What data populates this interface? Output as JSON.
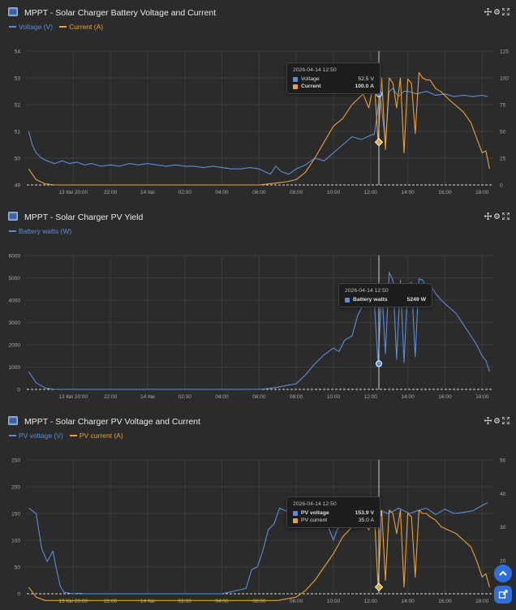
{
  "colors": {
    "blue": "#5b8dd9",
    "orange": "#e8a23a",
    "grid": "#3c3c3c",
    "axis_text": "#a8a8a8"
  },
  "icons": [
    "chart-panel-icon",
    "move-icon",
    "settings-icon",
    "expand-icon",
    "scroll-up-icon",
    "export-icon"
  ],
  "tooltip_time": "2026-04-14 12:50",
  "chart_data": [
    {
      "type": "line",
      "title": "MPPT - Solar Charger Battery Voltage and Current",
      "x_tick_labels": [
        "13 Кві 20:00",
        "22:00",
        "14 Кві",
        "02:00",
        "04:00",
        "06:00",
        "08:00",
        "10:00",
        "12:00",
        "14:00",
        "16:00",
        "18:00"
      ],
      "x_tick_hours": [
        20,
        22,
        24,
        26,
        28,
        30,
        32,
        34,
        36,
        38,
        40,
        42
      ],
      "xlim_hours": [
        17.5,
        42.6
      ],
      "y_left": {
        "ticks": [
          "49",
          "50",
          "51",
          "52",
          "53",
          "54"
        ],
        "lim": [
          49,
          54
        ]
      },
      "y_right": {
        "ticks": [
          "0",
          "25",
          "50",
          "75",
          "100",
          "125"
        ],
        "lim": [
          0,
          125
        ]
      },
      "series": [
        {
          "name": "Voltage (V)",
          "axis": "left",
          "color": "#5b8dd9",
          "x": [
            17.6,
            17.8,
            18,
            18.3,
            18.6,
            19,
            19.4,
            19.8,
            20.2,
            20.6,
            21,
            21.5,
            22,
            22.5,
            23,
            23.5,
            24,
            24.5,
            25,
            25.5,
            26,
            26.5,
            27,
            27.5,
            28,
            28.5,
            29,
            29.5,
            30,
            30.3,
            30.6,
            30.9,
            31.2,
            31.6,
            32,
            32.5,
            33,
            33.5,
            34,
            34.5,
            35,
            35.5,
            36,
            36.2,
            36.5,
            36.8,
            37,
            37.2,
            37.5,
            37.8,
            38,
            38.5,
            39,
            39.5,
            40,
            40.5,
            41,
            41.5,
            42,
            42.3
          ],
          "y": [
            51.0,
            50.5,
            50.2,
            50.0,
            49.9,
            49.8,
            49.9,
            49.8,
            49.85,
            49.75,
            49.8,
            49.7,
            49.75,
            49.7,
            49.8,
            49.75,
            49.8,
            49.75,
            49.7,
            49.75,
            49.7,
            49.7,
            49.65,
            49.7,
            49.65,
            49.6,
            49.6,
            49.65,
            49.6,
            49.5,
            49.4,
            49.7,
            49.5,
            49.4,
            49.6,
            49.75,
            50.0,
            49.9,
            50.2,
            50.5,
            50.8,
            50.7,
            50.85,
            50.9,
            52.4,
            50.6,
            52.5,
            52.6,
            52.3,
            52.5,
            52.5,
            52.4,
            52.5,
            52.35,
            52.4,
            52.3,
            52.35,
            52.3,
            52.35,
            52.3
          ]
        },
        {
          "name": "Current (A)",
          "axis": "right",
          "color": "#e8a23a",
          "x": [
            17.6,
            18,
            18.5,
            19,
            20,
            22,
            24,
            26,
            28,
            30,
            30.5,
            31,
            31.5,
            32,
            32.5,
            33,
            33.5,
            34,
            34.5,
            35,
            35.3,
            35.6,
            35.9,
            36.2,
            36.4,
            36.6,
            36.8,
            37,
            37.2,
            37.4,
            37.6,
            37.8,
            38,
            38.2,
            38.4,
            38.6,
            38.8,
            39,
            39.2,
            39.5,
            39.8,
            40.2,
            40.6,
            41,
            41.4,
            41.7,
            42,
            42.2,
            42.4
          ],
          "y": [
            15,
            5,
            1,
            0,
            0,
            0,
            0,
            0,
            0,
            0,
            1,
            2,
            3,
            5,
            12,
            25,
            40,
            55,
            62,
            75,
            80,
            85,
            72,
            97,
            40,
            100,
            33,
            100,
            95,
            72,
            100,
            30,
            99,
            95,
            48,
            105,
            100,
            98,
            98,
            90,
            87,
            80,
            74,
            68,
            58,
            44,
            30,
            32,
            15
          ]
        }
      ]
    },
    {
      "type": "line",
      "title": "MPPT - Solar Charger PV Yield",
      "x_tick_labels": [
        "13 Кві 20:00",
        "22:00",
        "14 Кві",
        "02:00",
        "04:00",
        "06:00",
        "08:00",
        "10:00",
        "12:00",
        "14:00",
        "16:00",
        "18:00"
      ],
      "x_tick_hours": [
        20,
        22,
        24,
        26,
        28,
        30,
        32,
        34,
        36,
        38,
        40,
        42
      ],
      "xlim_hours": [
        17.5,
        42.6
      ],
      "y_left": {
        "ticks": [
          "0",
          "1000",
          "2000",
          "3000",
          "4000",
          "5000",
          "6000"
        ],
        "lim": [
          0,
          6000
        ]
      },
      "series": [
        {
          "name": "Battery watts (W)",
          "axis": "left",
          "color": "#5b8dd9",
          "x": [
            17.6,
            18,
            18.5,
            19,
            20,
            22,
            24,
            26,
            28,
            30,
            30.5,
            31,
            31.5,
            32,
            32.5,
            33,
            33.5,
            34,
            34.3,
            34.6,
            35,
            35.3,
            35.6,
            35.9,
            36.2,
            36.4,
            36.6,
            36.8,
            37,
            37.2,
            37.4,
            37.6,
            37.8,
            38,
            38.2,
            38.4,
            38.6,
            38.8,
            39,
            39.2,
            39.5,
            39.8,
            40.2,
            40.6,
            41,
            41.4,
            41.7,
            42,
            42.2,
            42.4
          ],
          "y": [
            800,
            300,
            60,
            0,
            0,
            0,
            0,
            0,
            0,
            0,
            40,
            100,
            180,
            250,
            650,
            1150,
            1550,
            1850,
            1700,
            2200,
            2400,
            3300,
            3800,
            4200,
            3900,
            1150,
            4500,
            1600,
            5249,
            4900,
            1350,
            4900,
            1200,
            4700,
            4800,
            1450,
            4950,
            4900,
            4600,
            4700,
            4300,
            4000,
            3700,
            3400,
            2900,
            2400,
            2000,
            1500,
            1300,
            800
          ]
        }
      ]
    },
    {
      "type": "line",
      "title": "MPPT - Solar Charger PV Voltage and Current",
      "x_tick_labels": [
        "13 Кві 20:00",
        "22:00",
        "14 Кві",
        "02:00",
        "04:00",
        "06:00",
        "08:00",
        "10:00",
        "12:00",
        "14:00",
        "16:00",
        "18:00"
      ],
      "x_tick_hours": [
        20,
        22,
        24,
        26,
        28,
        30,
        32,
        34,
        36,
        38,
        40,
        42
      ],
      "xlim_hours": [
        17.5,
        42.6
      ],
      "y_left": {
        "ticks": [
          "0",
          "50",
          "100",
          "150",
          "200",
          "250"
        ],
        "lim": [
          0,
          250
        ]
      },
      "y_right": {
        "ticks": [
          "10",
          "20",
          "30",
          "40",
          "50"
        ],
        "lim": [
          10,
          50
        ]
      },
      "series": [
        {
          "name": "PV voltage (V)",
          "axis": "left",
          "color": "#5b8dd9",
          "x": [
            17.6,
            18,
            18.3,
            18.6,
            18.9,
            19.1,
            19.3,
            19.5,
            19.8,
            20,
            20.3,
            20.6,
            21,
            22,
            24,
            26,
            28,
            29.3,
            29.6,
            29.9,
            30.2,
            30.5,
            30.8,
            31.1,
            31.4,
            31.8,
            32.2,
            32.6,
            33,
            33.5,
            34,
            34.2,
            34.5,
            35,
            35.5,
            36,
            36.3,
            36.6,
            36.9,
            37.2,
            37.5,
            37.8,
            38.1,
            38.5,
            39,
            39.5,
            40,
            40.5,
            41,
            41.5,
            42,
            42.3
          ],
          "y": [
            160,
            150,
            85,
            60,
            80,
            45,
            15,
            3,
            1,
            0,
            1,
            0,
            0,
            0,
            0,
            0,
            0,
            10,
            45,
            50,
            80,
            120,
            130,
            160,
            155,
            160,
            158,
            155,
            150,
            145,
            100,
            120,
            130,
            130,
            125,
            140,
            150,
            155,
            150,
            153.9,
            160,
            155,
            150,
            155,
            160,
            148,
            158,
            150,
            152,
            155,
            165,
            170
          ]
        },
        {
          "name": "PV current (A)",
          "axis": "right",
          "color": "#e8a23a",
          "x": [
            17.6,
            18,
            18.5,
            19,
            20,
            22,
            24,
            26,
            28,
            30,
            30.5,
            31,
            31.5,
            32,
            32.5,
            33,
            33.5,
            34,
            34.5,
            35,
            35.3,
            35.6,
            35.9,
            36.2,
            36.4,
            36.6,
            36.8,
            37,
            37.2,
            37.4,
            37.6,
            37.8,
            38,
            38.2,
            38.4,
            38.6,
            38.8,
            39,
            39.2,
            39.5,
            39.8,
            40.2,
            40.6,
            41,
            41.4,
            41.7,
            42,
            42.2,
            42.4
          ],
          "y": [
            12,
            9,
            8,
            8,
            8,
            8,
            8,
            8,
            8,
            8,
            8,
            8,
            8.5,
            9,
            11,
            14,
            18,
            22,
            27,
            30,
            31,
            32,
            29,
            34,
            12,
            35,
            14,
            35,
            34,
            28,
            35,
            12,
            34,
            33,
            15,
            35,
            34,
            34,
            33,
            32,
            30,
            29,
            28,
            26,
            24,
            20,
            15,
            16,
            12
          ]
        }
      ]
    }
  ],
  "panels": [
    {
      "title": "MPPT - Solar Charger Battery Voltage and Current",
      "legend": [
        "Voltage (V)",
        "Current (A)"
      ],
      "tooltip": {
        "rows": [
          {
            "label": "Voltage",
            "value": "52.5 V"
          },
          {
            "label": "Current",
            "value": "100.0 A"
          }
        ]
      }
    },
    {
      "title": "MPPT - Solar Charger PV Yield",
      "legend": [
        "Battery watts (W)"
      ],
      "tooltip": {
        "rows": [
          {
            "label": "Battery watts",
            "value": "5249 W"
          }
        ]
      }
    },
    {
      "title": "MPPT - Solar Charger PV Voltage and Current",
      "legend": [
        "PV voltage (V)",
        "PV current (A)"
      ],
      "tooltip": {
        "rows": [
          {
            "label": "PV voltage",
            "value": "153.9 V"
          },
          {
            "label": "PV current",
            "value": "35.0 A"
          }
        ]
      }
    }
  ]
}
